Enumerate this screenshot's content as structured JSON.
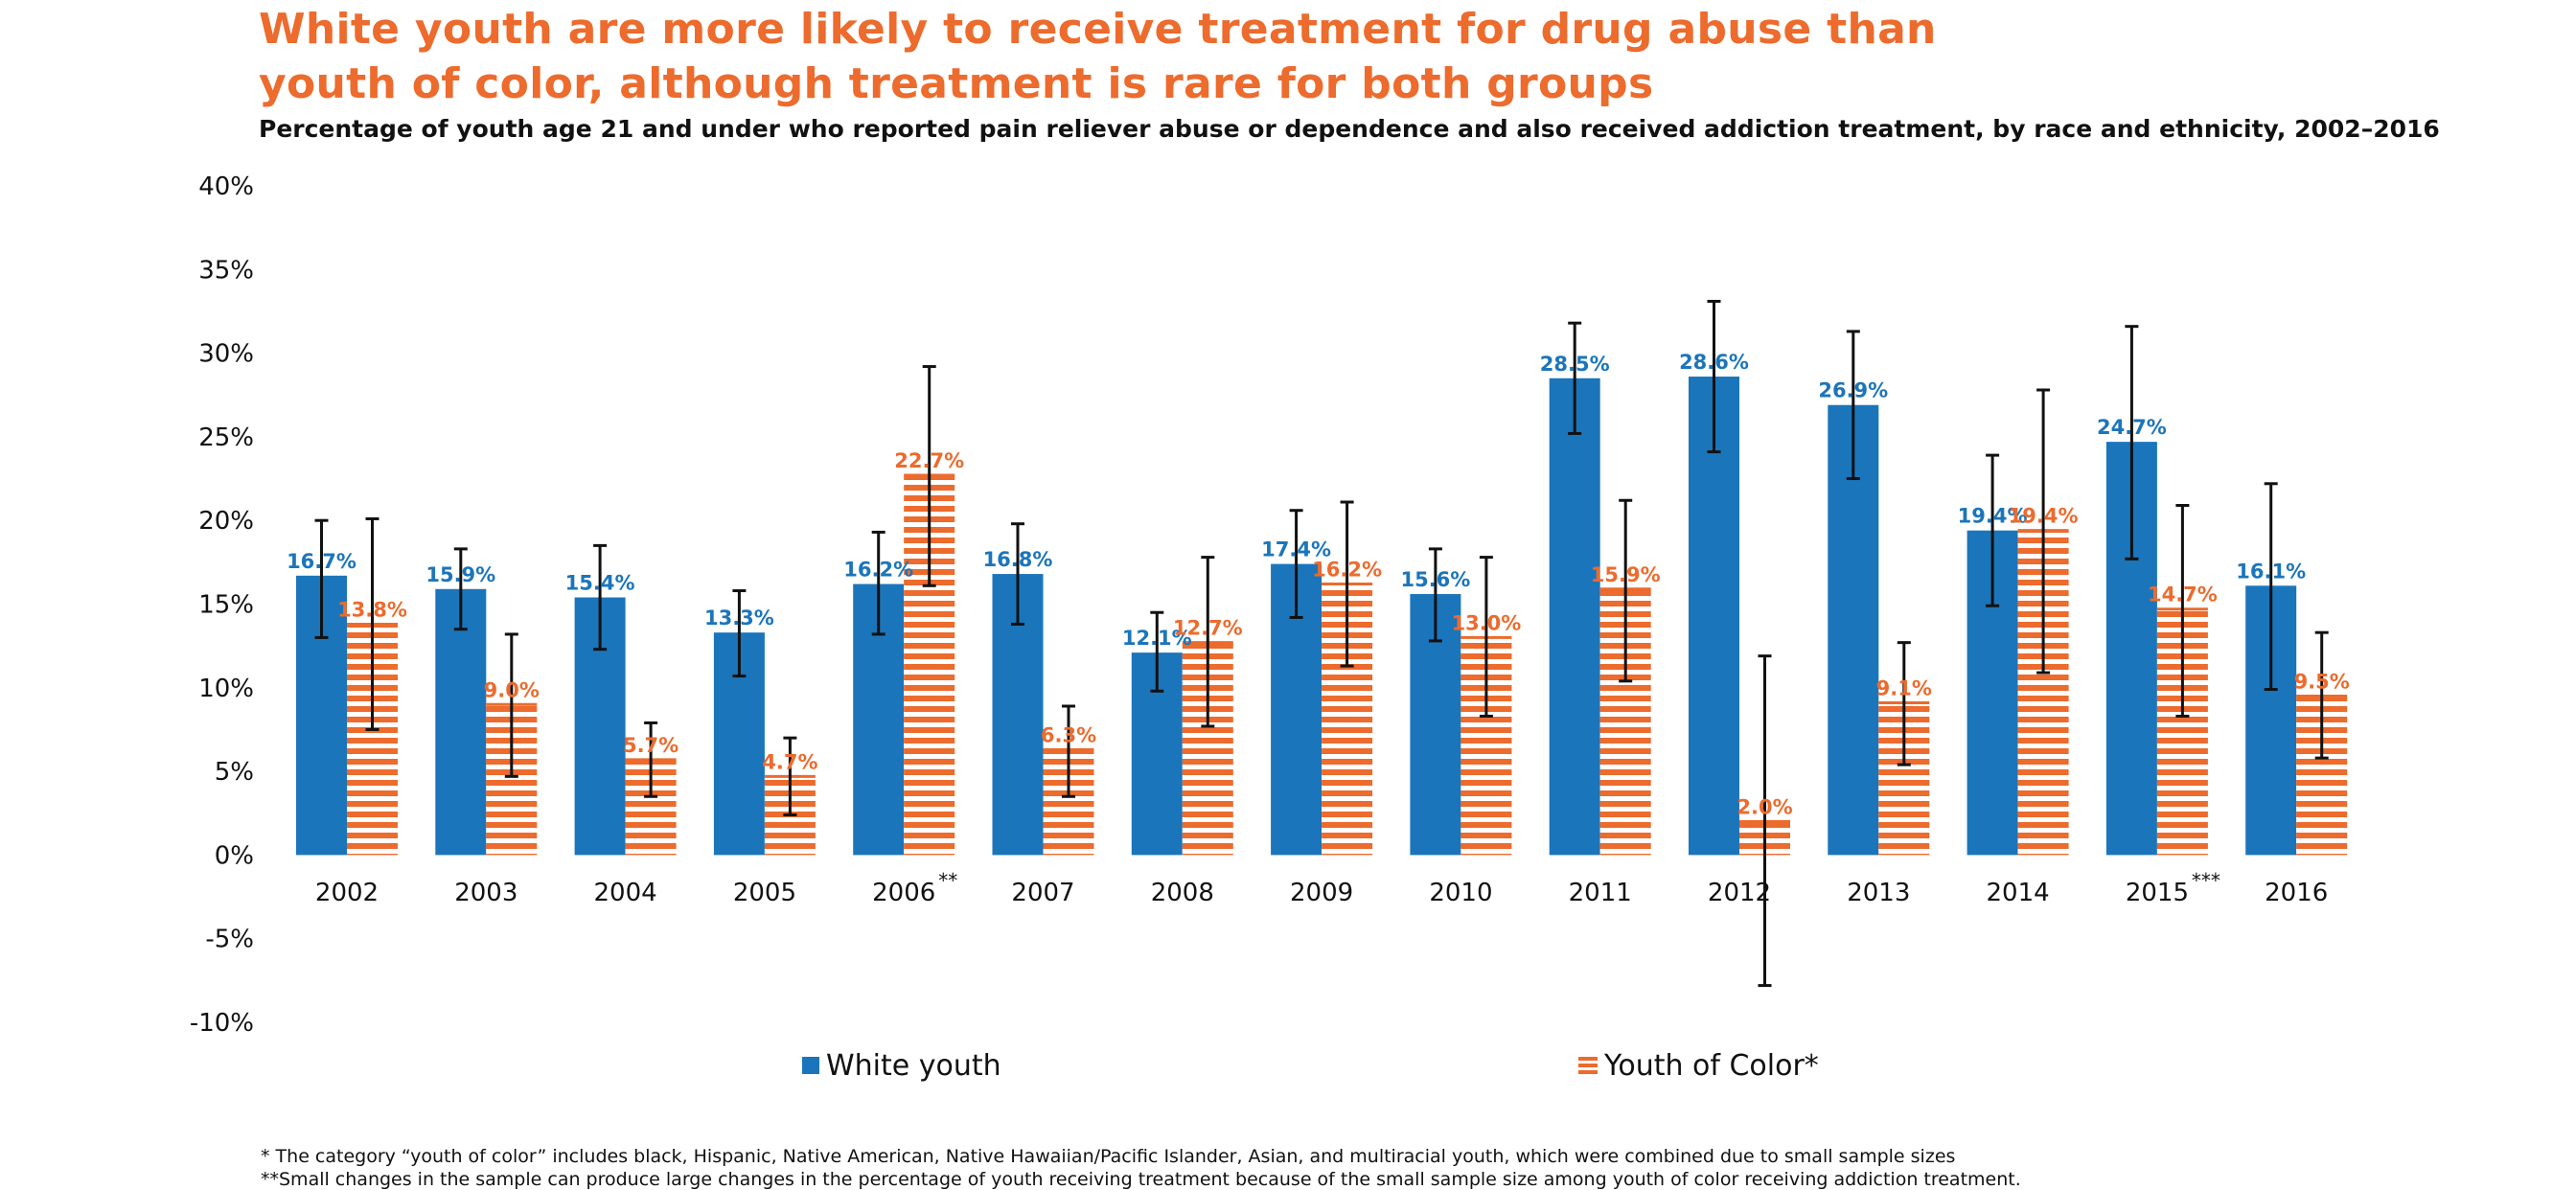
{
  "title_line1": "White youth are more likely to receive treatment for drug abuse than",
  "title_line2": "youth of color, although treatment is rare for both groups",
  "subtitle": "Percentage of youth age 21 and under who reported pain reliever abuse or dependence and also received addiction treatment, by race and ethnicity, 2002–2016",
  "colors": {
    "title": "#ec6b2d",
    "white_youth": "#1b75bb",
    "youth_of_color": "#ec6b2d",
    "error_bar": "#111111"
  },
  "chart_data": {
    "type": "bar",
    "categories": [
      "2002",
      "2003",
      "2004",
      "2005",
      "2006",
      "2007",
      "2008",
      "2009",
      "2010",
      "2011",
      "2012",
      "2013",
      "2014",
      "2015",
      "2016"
    ],
    "category_marks": [
      "",
      "",
      "",
      "",
      "**",
      "",
      "",
      "",
      "",
      "",
      "",
      "",
      "",
      "***",
      ""
    ],
    "series": [
      {
        "name": "White youth",
        "values": [
          16.7,
          15.9,
          15.4,
          13.3,
          16.2,
          16.8,
          12.1,
          17.4,
          15.6,
          28.5,
          28.6,
          26.9,
          19.4,
          24.7,
          16.1
        ],
        "labels": [
          "16.7%",
          "15.9%",
          "15.4%",
          "13.3%",
          "16.2%",
          "16.8%",
          "12.1%",
          "17.4%",
          "15.6%",
          "28.5%",
          "28.6%",
          "26.9%",
          "19.4%",
          "24.7%",
          "16.1%"
        ],
        "err_low": [
          13.0,
          13.5,
          12.3,
          10.7,
          13.2,
          13.8,
          9.8,
          14.2,
          12.8,
          25.2,
          24.1,
          22.5,
          14.9,
          17.7,
          9.9
        ],
        "err_high": [
          20.0,
          18.3,
          18.5,
          15.8,
          19.3,
          19.8,
          14.5,
          20.6,
          18.3,
          31.8,
          33.1,
          31.3,
          23.9,
          31.6,
          22.2
        ]
      },
      {
        "name": "Youth of Color*",
        "values": [
          13.8,
          9.0,
          5.7,
          4.7,
          22.7,
          6.3,
          12.7,
          16.2,
          13.0,
          15.9,
          2.0,
          9.1,
          19.4,
          14.7,
          9.5
        ],
        "labels": [
          "13.8%",
          "9.0%",
          "5.7%",
          "4.7%",
          "22.7%",
          "6.3%",
          "12.7%",
          "16.2%",
          "13.0%",
          "15.9%",
          "2.0%",
          "9.1%",
          "19.4%",
          "14.7%",
          "9.5%"
        ],
        "err_low": [
          7.5,
          4.7,
          3.5,
          2.4,
          16.1,
          3.5,
          7.7,
          11.3,
          8.3,
          10.4,
          -7.8,
          5.4,
          10.9,
          8.3,
          5.8
        ],
        "err_high": [
          20.1,
          13.2,
          7.9,
          7.0,
          29.2,
          8.9,
          17.8,
          21.1,
          17.8,
          21.2,
          11.9,
          12.7,
          27.8,
          20.9,
          13.3
        ]
      }
    ],
    "y_ticks": [
      40,
      35,
      30,
      25,
      20,
      15,
      10,
      5,
      0,
      -5,
      -10
    ],
    "y_tick_labels": [
      "40%",
      "35%",
      "30%",
      "25%",
      "20%",
      "15%",
      "10%",
      "5%",
      "0%",
      "-5%",
      "-10%"
    ],
    "ylim": [
      -10,
      40
    ],
    "legend_position": "bottom",
    "legend": [
      "White youth",
      "Youth of Color*"
    ]
  },
  "footnotes": {
    "note1": "* The category “youth of color” includes black, Hispanic, Native American, Native Hawaiian/Pacific Islander, Asian, and multiracial youth, which were combined due to small sample sizes",
    "note2": "**Small changes in the sample can produce large changes in the percentage of youth receiving treatment because of the small sample size among youth of color receiving addiction treatment."
  }
}
